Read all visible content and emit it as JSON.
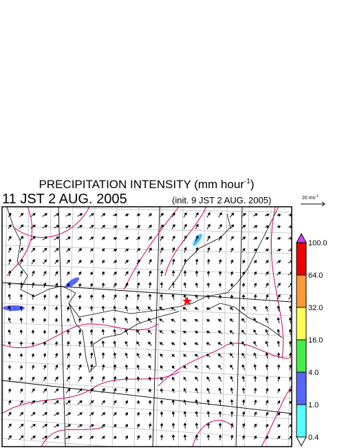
{
  "header": {
    "title": {
      "text": "PRECIPITATION INTENSITY (mm hour",
      "superscript": "-1",
      "suffix": ")"
    },
    "valid_time": "11 JST 2 AUG. 2005",
    "init_time": "(init. 9 JST 2 AUG. 2005)"
  },
  "wind_scale": {
    "text": "20 ms",
    "superscript": "-1"
  },
  "colorbar": {
    "colors": [
      "#cc44ff",
      "#ee0000",
      "#ff9933",
      "#ffff55",
      "#44ee44",
      "#5566ff",
      "#55ffff",
      "#ffffff"
    ],
    "levels": [
      {
        "value": 100,
        "label": "100.0"
      },
      {
        "value": 64,
        "label": "64.0"
      },
      {
        "value": 32,
        "label": "32.0"
      },
      {
        "value": 16,
        "label": "16.0"
      },
      {
        "value": 4,
        "label": "4.0"
      },
      {
        "value": 1,
        "label": "1.0"
      },
      {
        "value": 0.4,
        "label": "0.4"
      }
    ]
  }
}
